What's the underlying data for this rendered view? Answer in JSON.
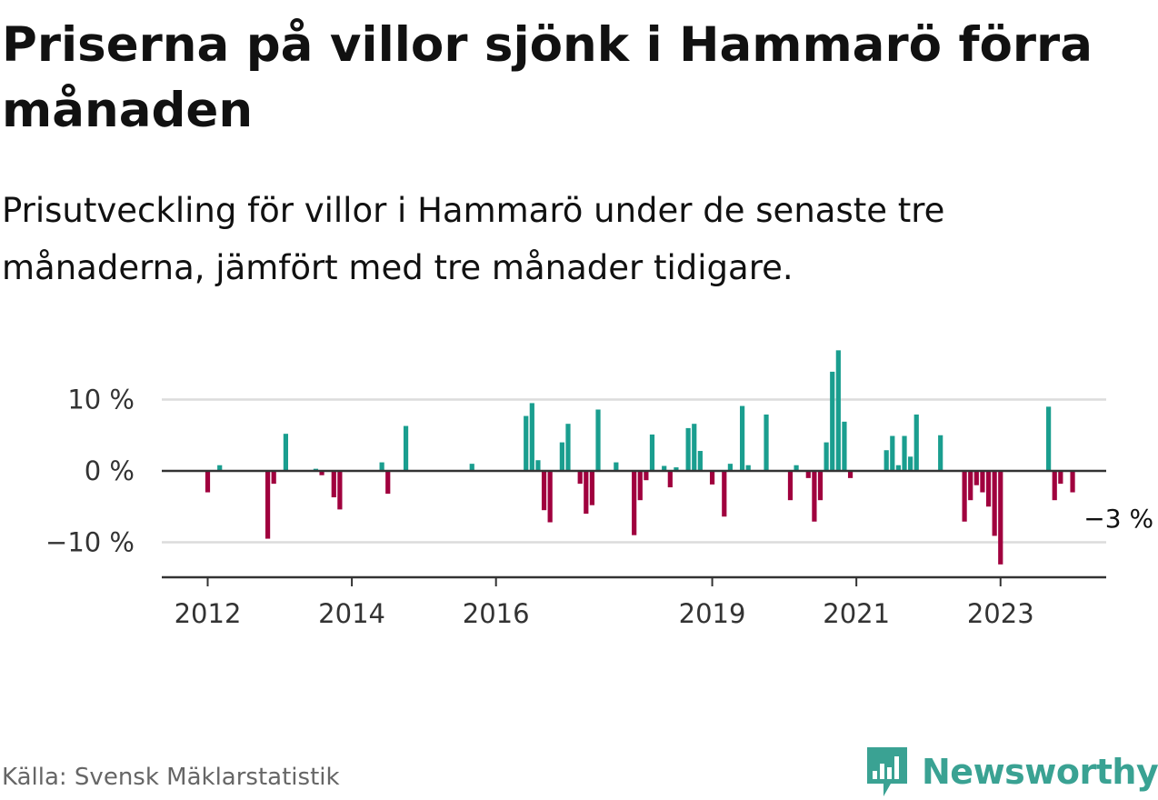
{
  "title": "Priserna på villor sjönk i Hammarö förra månaden",
  "subtitle": "Prisutveckling för villor i Hammarö under de senaste tre månaderna, jämfört med tre månader tidigare.",
  "source": "Källa: Svensk Mäklarstatistik",
  "brand": {
    "name": "Newsworthy",
    "logo": "newsworthy-logo-icon"
  },
  "colors": {
    "positive": "#1a9e8f",
    "negative": "#a0003e",
    "logo": "#3aa293"
  },
  "chart_data": {
    "type": "bar",
    "title": "Priserna på villor sjönk i Hammarö förra månaden",
    "subtitle": "Prisutveckling för villor i Hammarö under de senaste tre månaderna, jämfört med tre månader tidigare.",
    "xlabel": "",
    "ylabel": "",
    "ylim": [
      -15,
      18
    ],
    "xlim": [
      "2011-06",
      "2024-08"
    ],
    "yticks": [
      {
        "value": 10,
        "label": "10 %"
      },
      {
        "value": 0,
        "label": "0 %"
      },
      {
        "value": -10,
        "label": "−10 %"
      }
    ],
    "xticks": [
      {
        "value": "2012-01",
        "label": "2012"
      },
      {
        "value": "2014-01",
        "label": "2014"
      },
      {
        "value": "2016-01",
        "label": "2016"
      },
      {
        "value": "2019-01",
        "label": "2019"
      },
      {
        "value": "2021-01",
        "label": "2021"
      },
      {
        "value": "2023-01",
        "label": "2023"
      }
    ],
    "grid": true,
    "end_label": {
      "date": "2024-02",
      "text": "−3 %"
    },
    "series": [
      {
        "values": [
          {
            "date": "2012-01",
            "value": -3
          },
          {
            "date": "2012-03",
            "value": 0.8
          },
          {
            "date": "2012-11",
            "value": -9.5
          },
          {
            "date": "2012-12",
            "value": -1.8
          },
          {
            "date": "2013-02",
            "value": 5.2
          },
          {
            "date": "2013-07",
            "value": 0.3
          },
          {
            "date": "2013-08",
            "value": -0.6
          },
          {
            "date": "2013-10",
            "value": -3.7
          },
          {
            "date": "2013-11",
            "value": -5.4
          },
          {
            "date": "2014-06",
            "value": 1.2
          },
          {
            "date": "2014-07",
            "value": -3.2
          },
          {
            "date": "2014-10",
            "value": 6.3
          },
          {
            "date": "2015-09",
            "value": 1
          },
          {
            "date": "2016-06",
            "value": 7.7
          },
          {
            "date": "2016-07",
            "value": 9.5
          },
          {
            "date": "2016-08",
            "value": 1.5
          },
          {
            "date": "2016-09",
            "value": -5.5
          },
          {
            "date": "2016-10",
            "value": -7.2
          },
          {
            "date": "2016-12",
            "value": 4
          },
          {
            "date": "2017-01",
            "value": 6.6
          },
          {
            "date": "2017-03",
            "value": -1.8
          },
          {
            "date": "2017-04",
            "value": -6
          },
          {
            "date": "2017-05",
            "value": -4.8
          },
          {
            "date": "2017-06",
            "value": 8.6
          },
          {
            "date": "2017-09",
            "value": 1.2
          },
          {
            "date": "2017-12",
            "value": -9
          },
          {
            "date": "2018-01",
            "value": -4.1
          },
          {
            "date": "2018-02",
            "value": -1.3
          },
          {
            "date": "2018-03",
            "value": 5.1
          },
          {
            "date": "2018-05",
            "value": 0.7
          },
          {
            "date": "2018-06",
            "value": -2.3
          },
          {
            "date": "2018-07",
            "value": 0.5
          },
          {
            "date": "2018-09",
            "value": 6
          },
          {
            "date": "2018-10",
            "value": 6.6
          },
          {
            "date": "2018-11",
            "value": 2.8
          },
          {
            "date": "2019-01",
            "value": -1.9
          },
          {
            "date": "2019-03",
            "value": -6.4
          },
          {
            "date": "2019-04",
            "value": 1
          },
          {
            "date": "2019-06",
            "value": 9.1
          },
          {
            "date": "2019-07",
            "value": 0.8
          },
          {
            "date": "2019-10",
            "value": 7.9
          },
          {
            "date": "2020-02",
            "value": -4.1
          },
          {
            "date": "2020-03",
            "value": 0.8
          },
          {
            "date": "2020-05",
            "value": -1
          },
          {
            "date": "2020-06",
            "value": -7.1
          },
          {
            "date": "2020-07",
            "value": -4.1
          },
          {
            "date": "2020-08",
            "value": 4
          },
          {
            "date": "2020-09",
            "value": 13.9
          },
          {
            "date": "2020-10",
            "value": 16.9
          },
          {
            "date": "2020-11",
            "value": 6.9
          },
          {
            "date": "2020-12",
            "value": -1
          },
          {
            "date": "2021-06",
            "value": 2.9
          },
          {
            "date": "2021-07",
            "value": 4.9
          },
          {
            "date": "2021-08",
            "value": 0.8
          },
          {
            "date": "2021-09",
            "value": 4.9
          },
          {
            "date": "2021-10",
            "value": 2
          },
          {
            "date": "2021-11",
            "value": 7.9
          },
          {
            "date": "2022-03",
            "value": 5
          },
          {
            "date": "2022-07",
            "value": -7.1
          },
          {
            "date": "2022-08",
            "value": -4.1
          },
          {
            "date": "2022-09",
            "value": -2
          },
          {
            "date": "2022-10",
            "value": -3
          },
          {
            "date": "2022-11",
            "value": -5
          },
          {
            "date": "2022-12",
            "value": -9.1
          },
          {
            "date": "2023-01",
            "value": -13.1
          },
          {
            "date": "2023-09",
            "value": 9
          },
          {
            "date": "2023-10",
            "value": -4.1
          },
          {
            "date": "2023-11",
            "value": -1.8
          },
          {
            "date": "2024-01",
            "value": -3
          }
        ]
      }
    ]
  }
}
